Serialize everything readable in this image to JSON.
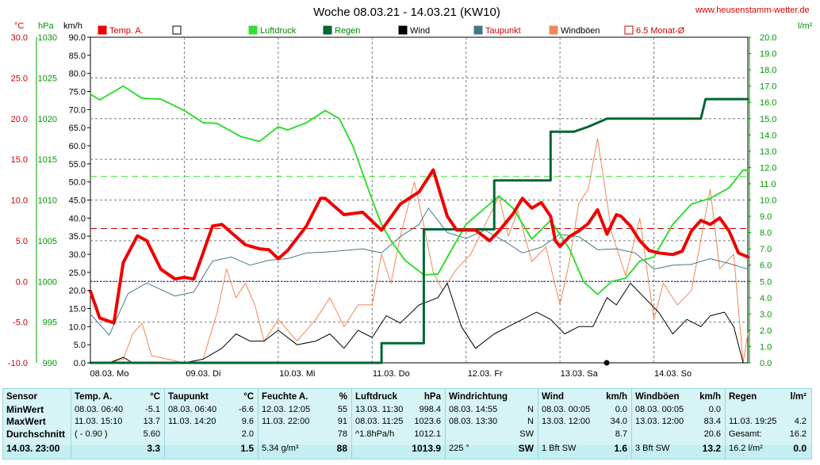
{
  "title": "Woche 08.03.21 - 14.03.21 (KW10)",
  "site": "www.heusenstamm-wetter.de",
  "colors": {
    "temp": "#ee0000",
    "luftdruck": "#33dd33",
    "regen": "#006633",
    "wind": "#000000",
    "taupunkt": "#447788",
    "windboeen": "#ee8855",
    "monat": "#cc0000",
    "tempAxis": "#cc0000",
    "pressureAxis": "#009900",
    "rainAxis": "#009900"
  },
  "chart_data": {
    "type": "line",
    "x_labels": [
      "08.03. Mo",
      "09.03. Di",
      "10.03. Mi",
      "11.03. Do",
      "12.03. Fr",
      "13.03. Sa",
      "14.03. So"
    ],
    "axes": {
      "temp": {
        "unit": "°C",
        "range": [
          -10,
          30
        ],
        "ticks": [
          "30.0",
          "25.0",
          "20.0",
          "15.0",
          "10.0",
          "5.0",
          "0.0",
          "-5.0",
          "-10.0"
        ]
      },
      "pressure": {
        "unit": "hPa",
        "range": [
          990,
          1030
        ],
        "ticks": [
          "1030",
          "1025",
          "1020",
          "1015",
          "1010",
          "1005",
          "1000",
          "995",
          "990"
        ]
      },
      "wind": {
        "unit": "km/h",
        "range": [
          0,
          90
        ],
        "ticks": [
          "90.0",
          "85.0",
          "80.0",
          "75.0",
          "70.0",
          "65.0",
          "60.0",
          "55.0",
          "50.0",
          "45.0",
          "40.0",
          "35.0",
          "30.0",
          "25.0",
          "20.0",
          "15.0",
          "10.0",
          "5.0",
          "0.0"
        ]
      },
      "rain": {
        "unit": "l/m²",
        "range": [
          0,
          20
        ],
        "ticks": [
          "20.0",
          "19.0",
          "18.0",
          "17.0",
          "16.0",
          "15.0",
          "14.0",
          "13.0",
          "12.0",
          "11.0",
          "10.0",
          "9.0",
          "8.0",
          "7.0",
          "6.0",
          "5.0",
          "4.0",
          "3.0",
          "2.0",
          "1.0",
          "0.0"
        ]
      }
    },
    "legend": [
      "Temp. A.",
      "",
      "Luftdruck",
      "Regen",
      "Wind",
      "Taupunkt",
      "Windböen",
      "6.5 Monat-Ø"
    ],
    "reference_lines": {
      "luftdruck_avg": 1012.9,
      "temp_month_avg": 6.5,
      "zero_line": 0.0
    },
    "series": [
      {
        "name": "Temp. A.",
        "axis": "temp",
        "x": [
          0,
          0.1,
          0.25,
          0.35,
          0.5,
          0.6,
          0.75,
          0.9,
          1.0,
          1.1,
          1.2,
          1.3,
          1.4,
          1.5,
          1.65,
          1.8,
          1.9,
          2.0,
          2.1,
          2.3,
          2.45,
          2.5,
          2.7,
          2.9,
          3.1,
          3.3,
          3.5,
          3.65,
          3.8,
          3.9,
          4.0,
          4.1,
          4.25,
          4.35,
          4.5,
          4.6,
          4.7,
          4.8,
          4.9,
          4.95,
          5.0,
          5.1,
          5.2,
          5.3,
          5.4,
          5.5,
          5.6,
          5.65,
          5.75,
          5.85,
          5.95,
          6.05,
          6.2,
          6.3,
          6.4,
          6.5,
          6.6,
          6.7,
          6.8,
          6.9,
          7.0
        ],
        "y": [
          -1.2,
          -4.5,
          -5.1,
          2.3,
          5.6,
          5.0,
          1.5,
          0.3,
          0.5,
          0.3,
          3.5,
          6.8,
          7.0,
          6.0,
          4.5,
          4.0,
          3.9,
          2.8,
          3.8,
          6.8,
          10.2,
          10.2,
          8.2,
          8.5,
          6.3,
          9.5,
          11.0,
          13.7,
          8.0,
          6.3,
          6.3,
          6.3,
          5.0,
          6.2,
          8.3,
          10.2,
          9.0,
          9.7,
          8.0,
          5.0,
          4.3,
          5.5,
          6.2,
          7.1,
          8.8,
          5.8,
          8.2,
          8.0,
          6.8,
          5.0,
          3.8,
          3.5,
          3.3,
          3.7,
          6.2,
          7.5,
          7.0,
          7.8,
          6.2,
          3.5,
          3.0
        ]
      },
      {
        "name": "Luftdruck",
        "axis": "pressure",
        "x": [
          0,
          0.1,
          0.35,
          0.55,
          0.75,
          1.0,
          1.2,
          1.35,
          1.6,
          1.8,
          2.0,
          2.1,
          2.3,
          2.5,
          2.65,
          2.8,
          3.0,
          3.1,
          3.2,
          3.35,
          3.55,
          3.7,
          3.85,
          4.0,
          4.2,
          4.35,
          4.5,
          4.7,
          4.9,
          5.1,
          5.25,
          5.4,
          5.55,
          5.7,
          5.85,
          6.0,
          6.2,
          6.4,
          6.6,
          6.8,
          6.95,
          7.0
        ],
        "y": [
          1023.0,
          1022.3,
          1024.0,
          1022.5,
          1022.4,
          1021.0,
          1019.5,
          1019.4,
          1017.8,
          1017.2,
          1019.0,
          1018.6,
          1019.5,
          1021.0,
          1020.0,
          1016.5,
          1010.0,
          1007.0,
          1005.0,
          1002.6,
          1000.8,
          1000.9,
          1004.0,
          1007.0,
          1009.0,
          1010.5,
          1009.0,
          1005.2,
          1007.5,
          1004.0,
          1000.0,
          998.4,
          1000.0,
          1000.4,
          1002.5,
          1003.0,
          1007.0,
          1009.5,
          1010.2,
          1011.5,
          1013.7,
          1013.6
        ]
      },
      {
        "name": "Regen",
        "axis": "rain",
        "x": [
          0,
          2.85,
          3.1,
          3.1,
          3.55,
          3.55,
          3.75,
          3.75,
          4.3,
          4.3,
          4.9,
          4.9,
          5.15,
          5.15,
          5.3,
          5.5,
          5.6,
          5.8,
          6.3,
          6.5,
          6.55,
          7.0
        ],
        "y": [
          0,
          0,
          0,
          1.2,
          1.2,
          8.2,
          8.2,
          8.2,
          8.2,
          11.2,
          11.2,
          14.2,
          14.2,
          14.2,
          14.5,
          15.0,
          15.0,
          15.0,
          15.0,
          15.0,
          16.2,
          16.2
        ]
      },
      {
        "name": "Wind",
        "axis": "wind",
        "x": [
          0,
          0.2,
          0.35,
          0.45,
          0.55,
          0.65,
          1.0,
          1.2,
          1.4,
          1.55,
          1.7,
          1.85,
          2.0,
          2.2,
          2.4,
          2.55,
          2.7,
          2.85,
          3.0,
          3.15,
          3.3,
          3.5,
          3.7,
          3.8,
          3.95,
          4.1,
          4.3,
          4.45,
          4.6,
          4.75,
          4.9,
          5.05,
          5.2,
          5.35,
          5.5,
          5.6,
          5.75,
          5.9,
          6.05,
          6.2,
          6.35,
          6.5,
          6.6,
          6.75,
          6.85,
          6.95,
          7.0
        ],
        "y": [
          0,
          0,
          1.5,
          0,
          0,
          0,
          0,
          1,
          4,
          8,
          6,
          6,
          9,
          5,
          6,
          8,
          4,
          9,
          7,
          13,
          11,
          16,
          18,
          22,
          10,
          4,
          8,
          10,
          12,
          14,
          12,
          8,
          10,
          10,
          18,
          16,
          22,
          18,
          14,
          8,
          12,
          10,
          13,
          14,
          10,
          0,
          0
        ]
      },
      {
        "name": "Taupunkt",
        "axis": "temp",
        "x": [
          0,
          0.2,
          0.4,
          0.6,
          0.9,
          1.1,
          1.3,
          1.5,
          1.7,
          1.9,
          2.1,
          2.3,
          2.5,
          2.7,
          2.9,
          3.1,
          3.3,
          3.5,
          3.6,
          3.8,
          4.0,
          4.2,
          4.4,
          4.6,
          4.8,
          5.0,
          5.2,
          5.4,
          5.6,
          5.8,
          6.0,
          6.2,
          6.4,
          6.6,
          6.8,
          7.0
        ],
        "y": [
          -4.0,
          -6.6,
          -1.5,
          -0.2,
          -1.8,
          -1.3,
          2.5,
          3.0,
          2.0,
          2.6,
          2.8,
          3.5,
          3.6,
          3.8,
          4.0,
          3.5,
          5.5,
          7.0,
          9.0,
          6.0,
          5.3,
          6.3,
          5.0,
          3.5,
          4.2,
          5.8,
          5.5,
          3.9,
          4.0,
          3.5,
          1.5,
          2.0,
          2.1,
          2.8,
          2.2,
          1.5
        ]
      },
      {
        "name": "Windböen",
        "axis": "wind",
        "x": [
          0,
          0.2,
          0.35,
          0.45,
          0.55,
          0.65,
          1.0,
          1.2,
          1.35,
          1.45,
          1.55,
          1.65,
          1.75,
          1.85,
          2.0,
          2.2,
          2.4,
          2.55,
          2.7,
          2.85,
          3.0,
          3.1,
          3.2,
          3.3,
          3.45,
          3.55,
          3.65,
          3.75,
          3.9,
          4.05,
          4.2,
          4.35,
          4.45,
          4.55,
          4.7,
          4.85,
          5.0,
          5.1,
          5.2,
          5.3,
          5.4,
          5.55,
          5.7,
          5.85,
          6.0,
          6.1,
          6.25,
          6.4,
          6.5,
          6.6,
          6.7,
          6.85,
          6.95,
          7.0
        ],
        "y": [
          0,
          0,
          1,
          8,
          11,
          2,
          0,
          1,
          14,
          26,
          18,
          22,
          16,
          6,
          12,
          6,
          12,
          18,
          10,
          16,
          16,
          30,
          22,
          35,
          50,
          38,
          25,
          20,
          26,
          30,
          38,
          46,
          35,
          42,
          28,
          32,
          16,
          28,
          44,
          48,
          62,
          36,
          24,
          40,
          12,
          22,
          16,
          20,
          34,
          48,
          26,
          30,
          0,
          8
        ]
      }
    ]
  },
  "table": {
    "row_labels": [
      "Sensor",
      "MinWert",
      "MaxWert",
      "Durchschnitt",
      "14.03. 23:00"
    ],
    "columns": [
      {
        "header": "Temp. A.",
        "unit": "°C",
        "min_time": "08.03.  06:40",
        "min": "-5.1",
        "max_time": "11.03.  15:10",
        "max": "13.7",
        "avg_note": "( - 0.90 )",
        "avg": "5.60",
        "current_note": "",
        "current": "3.3"
      },
      {
        "header": "Taupunkt",
        "unit": "°C",
        "min_time": "08.03.  06:40",
        "min": "-6.6",
        "max_time": "11.03.  14:20",
        "max": "9.6",
        "avg_note": "",
        "avg": "2.0",
        "current_note": "",
        "current": "1.5"
      },
      {
        "header": "Feuchte A.",
        "unit": "%",
        "min_time": "12.03.  12:05",
        "min": "55",
        "max_time": "11.03.  22:00",
        "max": "91",
        "avg_note": "",
        "avg": "78",
        "current_note": "5.34 g/m³",
        "current": "88"
      },
      {
        "header": "Luftdruck",
        "unit": "hPa",
        "min_time": "13.03.  11:30",
        "min": "998.4",
        "max_time": "08.03.  11:25",
        "max": "1023.6",
        "avg_note": "^1.8hPa/h",
        "avg": "1012.1",
        "current_note": "",
        "current": "1013.9"
      },
      {
        "header": "Windrichtung",
        "unit": "",
        "min_time": "08.03.  14:55",
        "min": "N",
        "max_time": "08.03.  13:30",
        "max": "N",
        "avg_note": "",
        "avg": "SW",
        "current_note": "225 °",
        "current": "SW"
      },
      {
        "header": "Wind",
        "unit": "km/h",
        "min_time": "08.03.  00:05",
        "min": "0.0",
        "max_time": "13.03.  12:00",
        "max": "34.0",
        "avg_note": "",
        "avg": "8.7",
        "current_note": "1 Bft SW",
        "current": "1.6"
      },
      {
        "header": "Windböen",
        "unit": "km/h",
        "min_time": "08.03.  00:05",
        "min": "0.0",
        "max_time": "13.03.  12:00",
        "max": "83.4",
        "avg_note": "",
        "avg": "20.6",
        "current_note": "3 Bft SW",
        "current": "13.2"
      },
      {
        "header": "Regen",
        "unit": "l/m²",
        "min_time": "",
        "min": "",
        "max_time": "11.03.  19:25",
        "max": "4.2",
        "avg_note": "Gesamt:",
        "avg": "16.2",
        "current_note": "16.2 l/m²",
        "current": "0.0"
      }
    ]
  }
}
